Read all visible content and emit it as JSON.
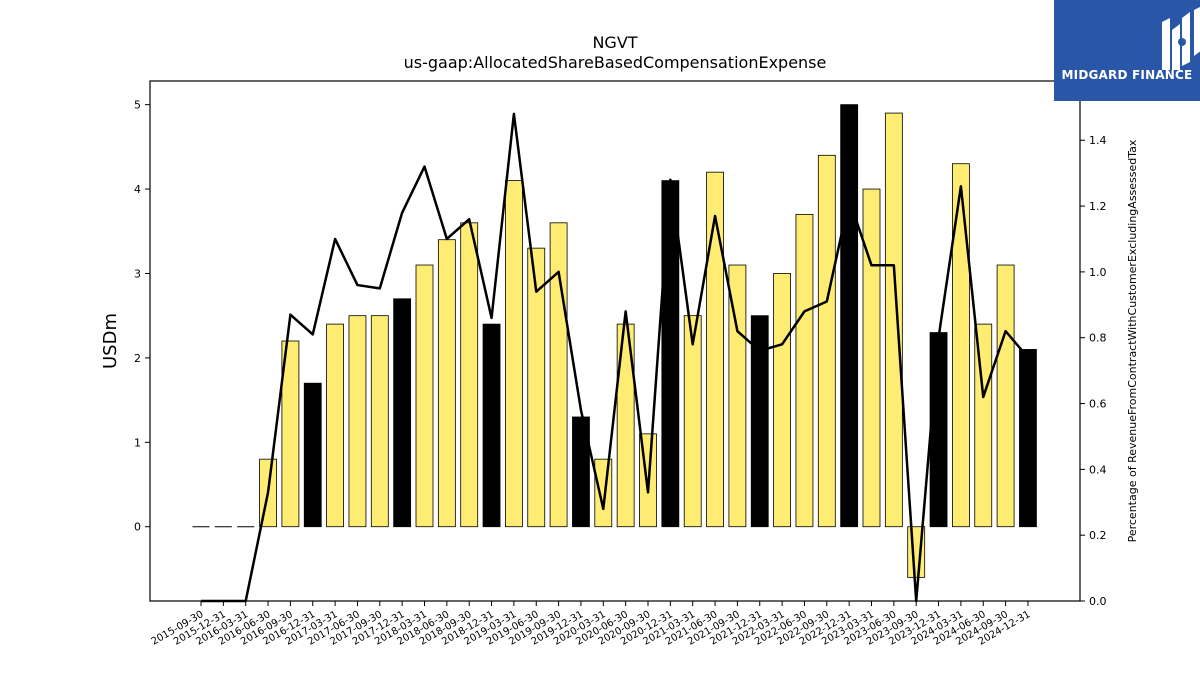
{
  "header": {
    "title": "NGVT",
    "subtitle": "us-gaap:AllocatedShareBasedCompensationExpense"
  },
  "logo": {
    "text": "MIDGARD FINANCE",
    "icon": "midgard-logo-icon",
    "background": "#2a56a8"
  },
  "chart_data": {
    "type": "bar",
    "categories": [
      "2015-09-30",
      "2015-12-31",
      "2016-03-31",
      "2016-06-30",
      "2016-09-30",
      "2016-12-31",
      "2017-03-31",
      "2017-06-30",
      "2017-09-30",
      "2017-12-31",
      "2018-03-31",
      "2018-06-30",
      "2018-09-30",
      "2018-12-31",
      "2019-03-31",
      "2019-06-30",
      "2019-09-30",
      "2019-12-31",
      "2020-03-31",
      "2020-06-30",
      "2020-09-30",
      "2020-12-31",
      "2021-03-31",
      "2021-06-30",
      "2021-09-30",
      "2021-12-31",
      "2022-03-31",
      "2022-06-30",
      "2022-09-30",
      "2022-12-31",
      "2023-03-31",
      "2023-06-30",
      "2023-09-30",
      "2023-12-31",
      "2024-03-31",
      "2024-06-30",
      "2024-09-30",
      "2024-12-31"
    ],
    "series": [
      {
        "axis": "left",
        "values": [
          0,
          0,
          0,
          0.8,
          2.2,
          1.7,
          2.4,
          2.5,
          2.5,
          2.7,
          3.1,
          3.4,
          3.6,
          2.4,
          4.1,
          3.3,
          3.6,
          1.3,
          0.8,
          2.4,
          1.1,
          4.1,
          2.5,
          4.2,
          3.1,
          2.5,
          3.0,
          3.7,
          4.4,
          5.0,
          4.0,
          4.9,
          -0.6,
          2.3,
          4.3,
          2.4,
          3.1,
          2.1
        ],
        "highlight": [
          false,
          false,
          false,
          false,
          false,
          true,
          false,
          false,
          false,
          true,
          false,
          false,
          false,
          true,
          false,
          false,
          false,
          true,
          false,
          false,
          false,
          true,
          false,
          false,
          false,
          true,
          false,
          false,
          false,
          true,
          false,
          false,
          false,
          true,
          false,
          false,
          false,
          true
        ]
      },
      {
        "axis": "right",
        "type": "line",
        "values": [
          0,
          0,
          0,
          0.33,
          0.87,
          0.81,
          1.1,
          0.96,
          0.95,
          1.18,
          1.32,
          1.1,
          1.16,
          0.86,
          1.48,
          0.94,
          1.0,
          0.58,
          0.28,
          0.88,
          0.33,
          1.28,
          0.78,
          1.17,
          0.82,
          0.76,
          0.78,
          0.88,
          0.91,
          1.22,
          1.02,
          1.02,
          0.0,
          0.8,
          1.26,
          0.62,
          0.82,
          0.74
        ]
      }
    ],
    "ylabel": "USDm",
    "y2label": "Percentage of RevenueFromContractWithCustomerExcludingAssessedTax",
    "ylim": [
      -0.88,
      5.28
    ],
    "y2lim": [
      0,
      1.58
    ],
    "yticks": [
      0,
      1,
      2,
      3,
      4,
      5
    ],
    "y2ticks": [
      "0.0",
      "0.2",
      "0.4",
      "0.6",
      "0.8",
      "1.0",
      "1.2",
      "1.4"
    ],
    "colors": {
      "bar": "#ffec73",
      "bar_highlight": "#000000",
      "line": "#000000",
      "bar_edge": "#000000"
    }
  }
}
